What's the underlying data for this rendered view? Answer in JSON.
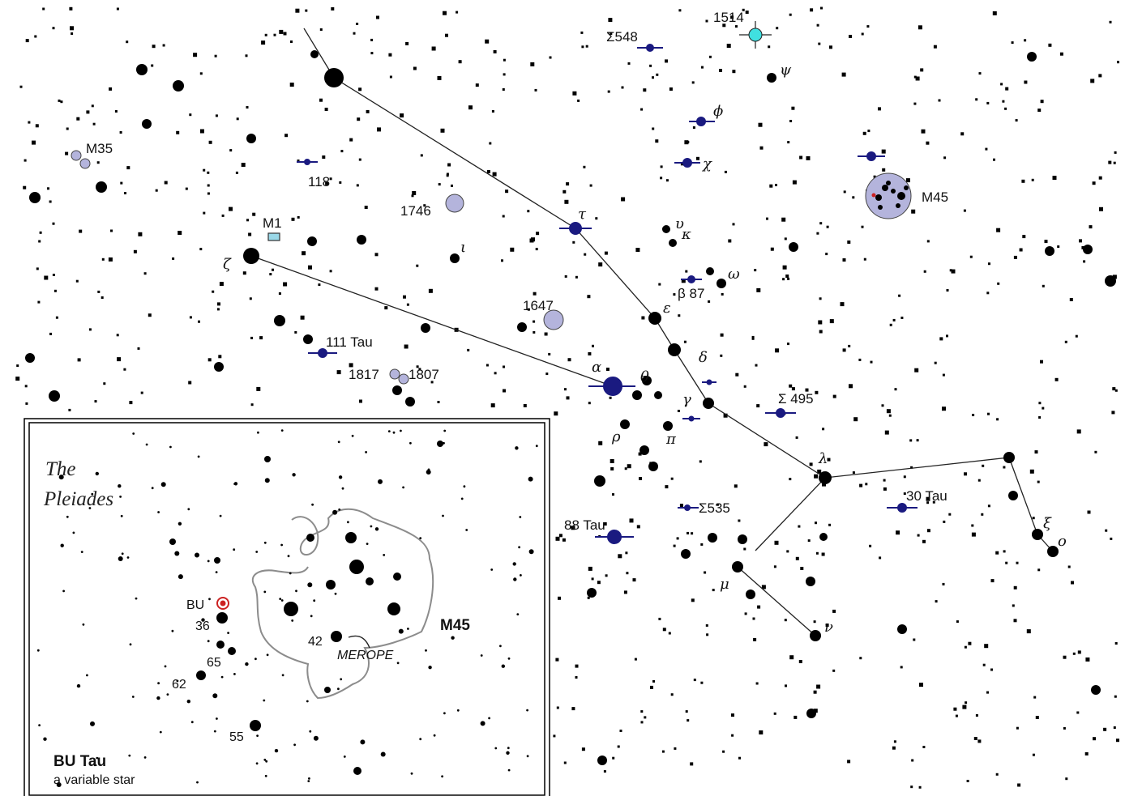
{
  "colors": {
    "background": "#ffffff",
    "star": "#000000",
    "double_star": "#1a1a80",
    "cluster": "#b4b4dc",
    "nebula_box": "#9ad8e8",
    "variable_star_highlight": "#cc2222",
    "carbon_star": "#40e0e0",
    "nebula_outline": "#8c8c8c"
  },
  "labels": {
    "m35": "M35",
    "n118": "118",
    "m1": "M1",
    "n1746": "1746",
    "zeta": "ζ",
    "n111tau": "111 Tau",
    "n1817": "1817",
    "n1807": "1807",
    "n1647": "1647",
    "sigma548": "Σ548",
    "n1514": "1514",
    "psi": "ψ",
    "phi": "ϕ",
    "chi": "χ",
    "tau": "τ",
    "upsilon": "υ",
    "kappa": "κ",
    "omega": "ω",
    "beta87": "β 87",
    "iota": "ι",
    "epsilon": "ε",
    "delta": "δ",
    "alpha": "α",
    "theta": "θ",
    "gamma": "γ",
    "sigma495": "Σ 495",
    "rho": "ρ",
    "pi": "π",
    "lambda": "λ",
    "sigma535": "Σ535",
    "n30tau": "30 Tau",
    "n88tau": "88 Tau",
    "xi": "ξ",
    "omicron": "ο",
    "mu": "μ",
    "nu": "ν",
    "m45": "M45"
  },
  "inset": {
    "title_line1": "The",
    "title_line2": "Pleiades",
    "bu": "BU",
    "n36": "36",
    "n65": "65",
    "n62": "62",
    "n55": "55",
    "n42": "42",
    "merope": "MEROPE",
    "m45": "M45",
    "bu_tau": "BU Tau",
    "bu_desc": "a variable star"
  }
}
